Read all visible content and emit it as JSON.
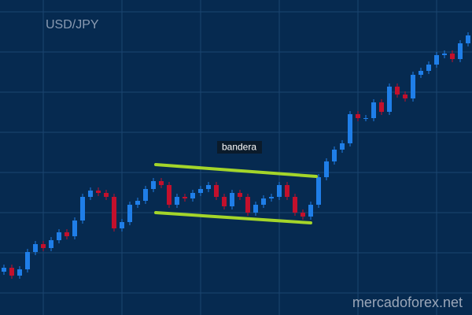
{
  "chart_data": {
    "type": "candlestick",
    "title": "USD/JPY",
    "annotation": "bandera",
    "watermark": "mercadoforex.net",
    "categories": [
      null,
      null,
      null,
      null,
      null,
      null,
      null,
      null,
      null,
      null,
      null,
      null,
      null,
      null,
      null,
      null,
      null,
      null,
      null,
      null,
      null,
      null,
      null,
      null,
      null,
      null,
      null,
      null,
      null,
      null,
      null,
      null,
      null,
      null,
      null,
      null,
      null,
      null,
      null,
      null,
      null,
      null,
      null,
      null,
      null,
      null,
      null,
      null,
      null,
      null,
      null,
      null,
      null,
      null,
      null,
      null,
      null,
      null,
      null,
      null
    ],
    "open": [
      55,
      60,
      50,
      58,
      80,
      90,
      85,
      95,
      105,
      100,
      120,
      150,
      158,
      155,
      150,
      110,
      118,
      140,
      145,
      160,
      170,
      165,
      140,
      150,
      148,
      155,
      160,
      165,
      150,
      138,
      155,
      150,
      130,
      140,
      148,
      150,
      165,
      150,
      130,
      125,
      140,
      175,
      195,
      210,
      218,
      255,
      250,
      250,
      270,
      258,
      290,
      280,
      275,
      305,
      310,
      318,
      330,
      332,
      325,
      345
    ],
    "high": [
      64,
      64,
      62,
      84,
      94,
      94,
      99,
      109,
      109,
      124,
      154,
      162,
      162,
      159,
      154,
      122,
      144,
      149,
      164,
      174,
      174,
      169,
      154,
      154,
      159,
      164,
      169,
      169,
      154,
      159,
      159,
      154,
      144,
      152,
      154,
      169,
      169,
      154,
      134,
      144,
      179,
      199,
      214,
      222,
      259,
      259,
      254,
      274,
      274,
      294,
      294,
      284,
      309,
      314,
      322,
      334,
      336,
      336,
      349,
      359
    ],
    "low": [
      51,
      46,
      46,
      54,
      76,
      81,
      81,
      91,
      96,
      96,
      116,
      146,
      151,
      146,
      106,
      106,
      114,
      136,
      141,
      156,
      161,
      136,
      136,
      144,
      144,
      151,
      156,
      146,
      134,
      134,
      146,
      126,
      126,
      136,
      144,
      146,
      146,
      126,
      121,
      121,
      136,
      171,
      191,
      206,
      214,
      246,
      246,
      246,
      254,
      254,
      276,
      271,
      271,
      301,
      306,
      314,
      326,
      321,
      321,
      341
    ],
    "close": [
      60,
      50,
      58,
      80,
      90,
      85,
      95,
      105,
      100,
      120,
      150,
      158,
      155,
      150,
      110,
      118,
      140,
      145,
      160,
      170,
      165,
      140,
      150,
      148,
      155,
      160,
      165,
      150,
      138,
      155,
      150,
      130,
      140,
      148,
      150,
      165,
      150,
      130,
      125,
      140,
      175,
      195,
      210,
      218,
      255,
      250,
      250,
      270,
      258,
      290,
      280,
      275,
      305,
      310,
      318,
      330,
      332,
      325,
      345,
      355
    ],
    "up_color": "#1f7ee8",
    "down_color": "#c3102c",
    "grid": true
  }
}
